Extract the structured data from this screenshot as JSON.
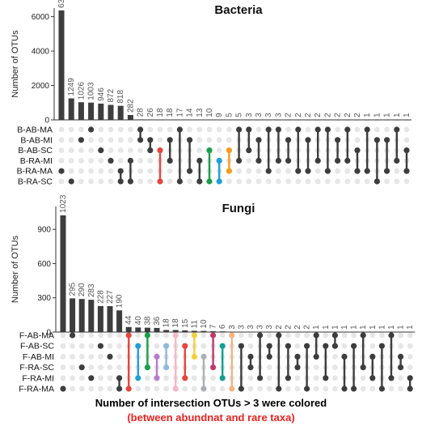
{
  "dot_bg": "#e6e6e6",
  "bar_color": "#3d3d3d",
  "caption": {
    "line1": "Number of intersection OTUs  > 3 were colored",
    "line2": "(between abundnat and rare taxa)",
    "line2_color": "#e8231f"
  },
  "chart_data": [
    {
      "type": "upset",
      "title": "Bacteria",
      "ylabel": "Number of OTUs",
      "ylim": [
        0,
        6500
      ],
      "yticks": [
        0,
        2000,
        4000,
        6000
      ],
      "sets": [
        "B-AB-MA",
        "B-AB-MI",
        "B-AB-SC",
        "B-RA-MI",
        "B-RA-MA",
        "B-RA-SC"
      ],
      "values": [
        6367,
        1249,
        1026,
        1003,
        946,
        872,
        818,
        282,
        28,
        26,
        18,
        18,
        17,
        14,
        13,
        10,
        9,
        5,
        5,
        3,
        3,
        3,
        3,
        2,
        2,
        2,
        2,
        2,
        2,
        2,
        2,
        1,
        1,
        1,
        1,
        1
      ],
      "memberships": [
        [
          4
        ],
        [
          5
        ],
        [
          1
        ],
        [
          0
        ],
        [
          2
        ],
        [
          3
        ],
        [
          5,
          4
        ],
        [
          5,
          3
        ],
        [
          0,
          1
        ],
        [
          1,
          2
        ],
        [
          2,
          5
        ],
        [
          1,
          3
        ],
        [
          0,
          5
        ],
        [
          1,
          4
        ],
        [
          3,
          5
        ],
        [
          2,
          5
        ],
        [
          3,
          5
        ],
        [
          2,
          4
        ],
        [
          0,
          3
        ],
        [
          0,
          2
        ],
        [
          1,
          3
        ],
        [
          0,
          4
        ],
        [
          0,
          3
        ],
        [
          1,
          3
        ],
        [
          0,
          4
        ],
        [
          1,
          4
        ],
        [
          0,
          3
        ],
        [
          0,
          4
        ],
        [
          1,
          3
        ],
        [
          0,
          3
        ],
        [
          2,
          4
        ],
        [
          0,
          4
        ],
        [
          1,
          5
        ],
        [
          1,
          4
        ],
        [
          0,
          3
        ],
        [
          2,
          4
        ]
      ],
      "colors": {
        "10": "#e8453c",
        "15": "#1a9e4a",
        "16": "#1ea0d8",
        "17": "#f39c1d"
      }
    },
    {
      "type": "upset",
      "title": "Fungi",
      "ylabel": "Number of OTUs",
      "ylim": [
        0,
        1100
      ],
      "yticks": [
        0,
        300,
        600,
        900
      ],
      "sets": [
        "F-AB-MA",
        "F-AB-SC",
        "F-AB-MI",
        "F-RA-SC",
        "F-RA-MI",
        "F-RA-MA"
      ],
      "values": [
        1023,
        295,
        290,
        283,
        228,
        227,
        190,
        44,
        40,
        38,
        36,
        18,
        18,
        15,
        11,
        10,
        7,
        6,
        3,
        3,
        3,
        3,
        3,
        2,
        2,
        2,
        2,
        1,
        1,
        1,
        1,
        1,
        1,
        1,
        1,
        1,
        1,
        1
      ],
      "memberships": [
        [
          5
        ],
        [
          0
        ],
        [
          3
        ],
        [
          4
        ],
        [
          1
        ],
        [
          2
        ],
        [
          5,
          4
        ],
        [
          0,
          5
        ],
        [
          1,
          4
        ],
        [
          0,
          3
        ],
        [
          2,
          4
        ],
        [
          1,
          3
        ],
        [
          0,
          5
        ],
        [
          1,
          4
        ],
        [
          0,
          2
        ],
        [
          2,
          5
        ],
        [
          0,
          3
        ],
        [
          1,
          4
        ],
        [
          0,
          5
        ],
        [
          1,
          5
        ],
        [
          2,
          3
        ],
        [
          0,
          4
        ],
        [
          1,
          2
        ],
        [
          0,
          5
        ],
        [
          1,
          4
        ],
        [
          2,
          3
        ],
        [
          1,
          5
        ],
        [
          0,
          2
        ],
        [
          1,
          4
        ],
        [
          0,
          1
        ],
        [
          2,
          5
        ],
        [
          1,
          5
        ],
        [
          0,
          3
        ],
        [
          2,
          4
        ],
        [
          1,
          5
        ],
        [
          0,
          4
        ],
        [
          2,
          3
        ],
        [
          4,
          5
        ]
      ],
      "colors": {
        "7": "#e8453c",
        "8": "#1ea0d8",
        "9": "#1a9e4a",
        "10": "#b57bcf",
        "11": "#8fb8de",
        "12": "#f5b8c8",
        "13": "#e8453c",
        "14": "#f4d03f",
        "15": "#aab0b5",
        "16": "#c0396b",
        "17": "#159e8c",
        "18": "#f5b482"
      }
    }
  ]
}
